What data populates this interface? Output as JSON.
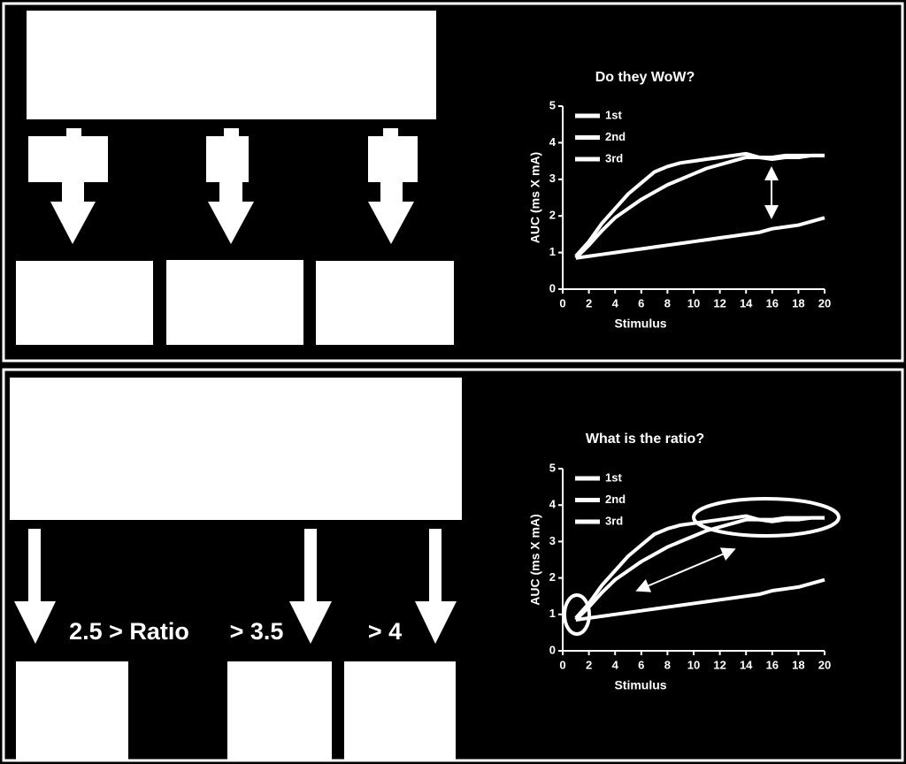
{
  "chart_data": [
    {
      "type": "line",
      "title": "Do they WoW?",
      "xlabel": "Stimulus",
      "ylabel": "AUC (ms X mA)",
      "x": [
        1,
        2,
        3,
        4,
        5,
        6,
        7,
        8,
        9,
        10,
        11,
        12,
        13,
        14,
        15,
        16,
        17,
        18,
        19,
        20
      ],
      "xlim": [
        0,
        20
      ],
      "xticks": [
        0,
        2,
        4,
        6,
        8,
        10,
        12,
        14,
        16,
        18,
        20
      ],
      "ylim": [
        0,
        5
      ],
      "yticks": [
        0,
        1,
        2,
        3,
        4,
        5
      ],
      "series": [
        {
          "name": "1st",
          "color": "#ffffff",
          "values": [
            0.9,
            1.3,
            1.8,
            2.2,
            2.6,
            2.9,
            3.2,
            3.35,
            3.45,
            3.5,
            3.55,
            3.6,
            3.65,
            3.7,
            3.6,
            3.6,
            3.65,
            3.65,
            3.65,
            3.65
          ]
        },
        {
          "name": "2nd",
          "color": "#ffffff",
          "values": [
            0.85,
            1.2,
            1.6,
            1.95,
            2.2,
            2.45,
            2.65,
            2.85,
            3.0,
            3.15,
            3.3,
            3.4,
            3.5,
            3.6,
            3.6,
            3.55,
            3.6,
            3.6,
            3.65,
            3.65
          ]
        },
        {
          "name": "3rd",
          "color": "#ffffff",
          "values": [
            0.85,
            0.9,
            0.95,
            1.0,
            1.05,
            1.1,
            1.15,
            1.2,
            1.25,
            1.3,
            1.35,
            1.4,
            1.45,
            1.5,
            1.55,
            1.65,
            1.7,
            1.75,
            1.85,
            1.95
          ]
        }
      ]
    },
    {
      "type": "line",
      "title": "What is the ratio?",
      "xlabel": "Stimulus",
      "ylabel": "AUC (ms X mA)",
      "x": [
        1,
        2,
        3,
        4,
        5,
        6,
        7,
        8,
        9,
        10,
        11,
        12,
        13,
        14,
        15,
        16,
        17,
        18,
        19,
        20
      ],
      "xlim": [
        0,
        20
      ],
      "xticks": [
        0,
        2,
        4,
        6,
        8,
        10,
        12,
        14,
        16,
        18,
        20
      ],
      "ylim": [
        0,
        5
      ],
      "yticks": [
        0,
        1,
        2,
        3,
        4,
        5
      ],
      "series": [
        {
          "name": "1st",
          "color": "#ffffff",
          "values": [
            0.9,
            1.3,
            1.8,
            2.2,
            2.6,
            2.9,
            3.2,
            3.35,
            3.45,
            3.5,
            3.55,
            3.6,
            3.65,
            3.7,
            3.6,
            3.6,
            3.65,
            3.65,
            3.65,
            3.65
          ]
        },
        {
          "name": "2nd",
          "color": "#ffffff",
          "values": [
            0.85,
            1.2,
            1.6,
            1.95,
            2.2,
            2.45,
            2.65,
            2.85,
            3.0,
            3.15,
            3.3,
            3.4,
            3.5,
            3.6,
            3.6,
            3.55,
            3.6,
            3.6,
            3.65,
            3.65
          ]
        },
        {
          "name": "3rd",
          "color": "#ffffff",
          "values": [
            0.85,
            0.9,
            0.95,
            1.0,
            1.05,
            1.1,
            1.15,
            1.2,
            1.25,
            1.3,
            1.35,
            1.4,
            1.45,
            1.5,
            1.55,
            1.65,
            1.7,
            1.75,
            1.85,
            1.95
          ]
        }
      ]
    }
  ],
  "ratio_labels": [
    "2.5 > Ratio",
    "> 3.5",
    "> 4"
  ]
}
